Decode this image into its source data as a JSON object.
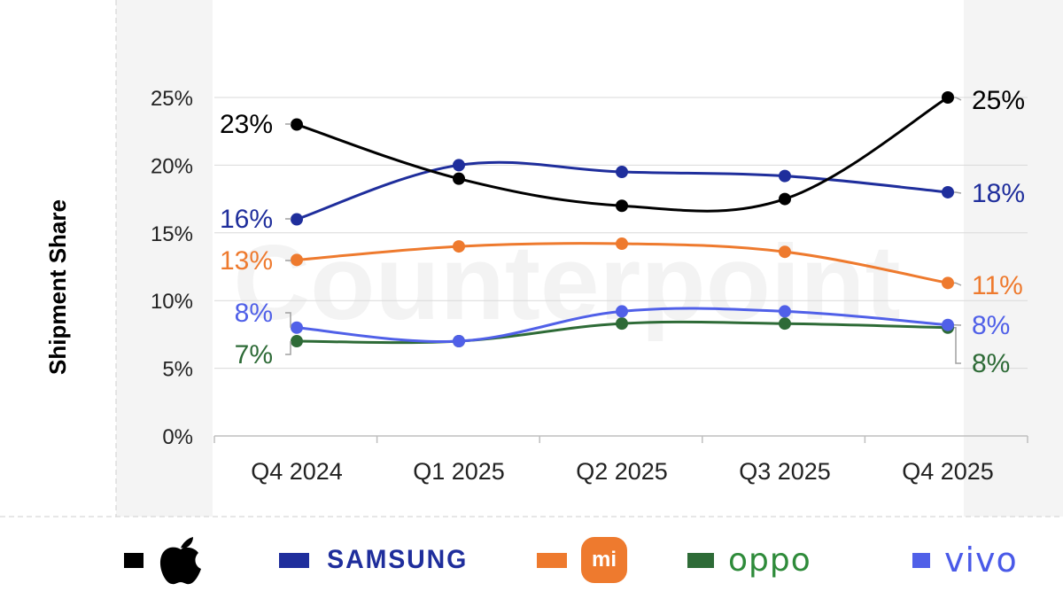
{
  "chart_data": {
    "type": "line",
    "title": "",
    "xlabel": "",
    "ylabel": "Shipment Share",
    "ylim": [
      0,
      25
    ],
    "yticks": [
      0,
      5,
      10,
      15,
      20,
      25
    ],
    "ytick_labels": [
      "0%",
      "5%",
      "10%",
      "15%",
      "20%",
      "25%"
    ],
    "categories": [
      "Q4 2024",
      "Q1 2025",
      "Q2 2025",
      "Q3 2025",
      "Q4 2025"
    ],
    "series": [
      {
        "name": "Apple",
        "color": "#000000",
        "values": [
          23,
          19,
          17,
          17.5,
          25
        ],
        "start_label": "23%",
        "end_label": "25%"
      },
      {
        "name": "SAMSUNG",
        "color": "#1f2e9c",
        "values": [
          16,
          20,
          19.5,
          19.2,
          18
        ],
        "start_label": "16%",
        "end_label": "18%"
      },
      {
        "name": "Xiaomi",
        "color": "#ee7a2e",
        "values": [
          13,
          14,
          14.2,
          13.6,
          11.3
        ],
        "start_label": "13%",
        "end_label": "11%"
      },
      {
        "name": "OPPO",
        "color": "#2e6b37",
        "values": [
          7,
          7,
          8.3,
          8.3,
          8
        ],
        "start_label": "7%",
        "end_label": "8%"
      },
      {
        "name": "vivo",
        "color": "#5060e8",
        "values": [
          8,
          7,
          9.2,
          9.2,
          8.2
        ],
        "start_label": "8%",
        "end_label": "8%"
      }
    ]
  },
  "legend": {
    "samsung": "SAMSUNG",
    "xiaomi": "mi",
    "oppo": "oppo",
    "vivo": "vivo"
  },
  "watermark": "Counterpoint"
}
